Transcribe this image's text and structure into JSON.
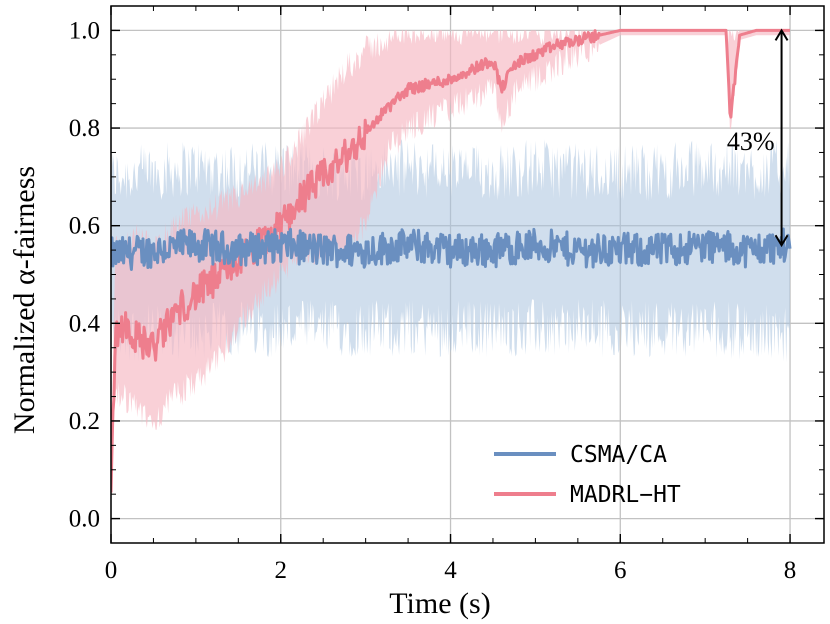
{
  "chart_data": {
    "type": "line",
    "title": "",
    "xlabel": "Time (s)",
    "ylabel": "Normalized α-fairness",
    "xlim": [
      0,
      8.4
    ],
    "ylim": [
      -0.05,
      1.05
    ],
    "xticks": [
      "0",
      "2",
      "4",
      "6",
      "8"
    ],
    "yticks": [
      "0.0",
      "0.2",
      "0.4",
      "0.6",
      "0.8",
      "1.0"
    ],
    "grid": true,
    "legend_position": "bottom-right",
    "series": [
      {
        "name": "CSMA/CA",
        "color": "#6a8fc0",
        "band_color": "#a9c3df",
        "x": [
          0.0,
          0.5,
          1.0,
          1.5,
          2.0,
          2.5,
          3.0,
          3.5,
          4.0,
          4.5,
          5.0,
          5.5,
          6.0,
          6.5,
          7.0,
          7.5,
          8.0
        ],
        "y": [
          0.54,
          0.55,
          0.56,
          0.55,
          0.56,
          0.55,
          0.55,
          0.56,
          0.55,
          0.55,
          0.56,
          0.55,
          0.55,
          0.55,
          0.56,
          0.55,
          0.56
        ],
        "band_low": [
          0.38,
          0.38,
          0.38,
          0.39,
          0.39,
          0.39,
          0.39,
          0.39,
          0.39,
          0.39,
          0.39,
          0.39,
          0.39,
          0.39,
          0.39,
          0.38,
          0.38
        ],
        "band_high": [
          0.7,
          0.71,
          0.72,
          0.71,
          0.72,
          0.71,
          0.71,
          0.72,
          0.71,
          0.71,
          0.72,
          0.71,
          0.71,
          0.71,
          0.72,
          0.71,
          0.72
        ]
      },
      {
        "name": "MADRL−HT",
        "color": "#ee7e8d",
        "band_color": "#f6b7c1",
        "x": [
          0.0,
          0.05,
          0.15,
          0.3,
          0.5,
          0.75,
          1.0,
          1.25,
          1.5,
          1.75,
          2.0,
          2.25,
          2.5,
          2.75,
          3.0,
          3.25,
          3.5,
          3.75,
          4.0,
          4.25,
          4.5,
          4.6,
          4.75,
          5.0,
          5.25,
          5.5,
          5.75,
          6.0,
          6.5,
          7.0,
          7.25,
          7.3,
          7.4,
          7.6,
          8.0
        ],
        "y": [
          0.05,
          0.38,
          0.4,
          0.37,
          0.35,
          0.42,
          0.46,
          0.49,
          0.53,
          0.56,
          0.6,
          0.66,
          0.7,
          0.74,
          0.79,
          0.84,
          0.88,
          0.89,
          0.9,
          0.92,
          0.94,
          0.88,
          0.93,
          0.95,
          0.97,
          0.98,
          0.99,
          1.0,
          1.0,
          1.0,
          1.0,
          0.81,
          0.99,
          1.0,
          1.0
        ],
        "band_low": [
          0.0,
          0.25,
          0.25,
          0.22,
          0.2,
          0.25,
          0.28,
          0.32,
          0.4,
          0.45,
          0.5,
          0.55,
          0.55,
          0.55,
          0.6,
          0.75,
          0.8,
          0.82,
          0.84,
          0.86,
          0.88,
          0.8,
          0.87,
          0.9,
          0.93,
          0.95,
          0.97,
          0.99,
          0.99,
          0.99,
          0.99,
          0.78,
          0.98,
          0.99,
          0.99
        ],
        "band_high": [
          0.1,
          0.55,
          0.55,
          0.58,
          0.55,
          0.6,
          0.62,
          0.64,
          0.66,
          0.68,
          0.72,
          0.78,
          0.85,
          0.92,
          0.96,
          0.98,
          1.0,
          1.0,
          1.0,
          1.0,
          1.0,
          1.0,
          1.0,
          1.0,
          1.0,
          1.0,
          1.0,
          1.0,
          1.0,
          1.0,
          1.0,
          1.0,
          1.0,
          1.0,
          1.0
        ]
      }
    ],
    "annotation": {
      "text": "43%",
      "x": 7.9,
      "y_from": 1.0,
      "y_to": 0.56
    }
  }
}
